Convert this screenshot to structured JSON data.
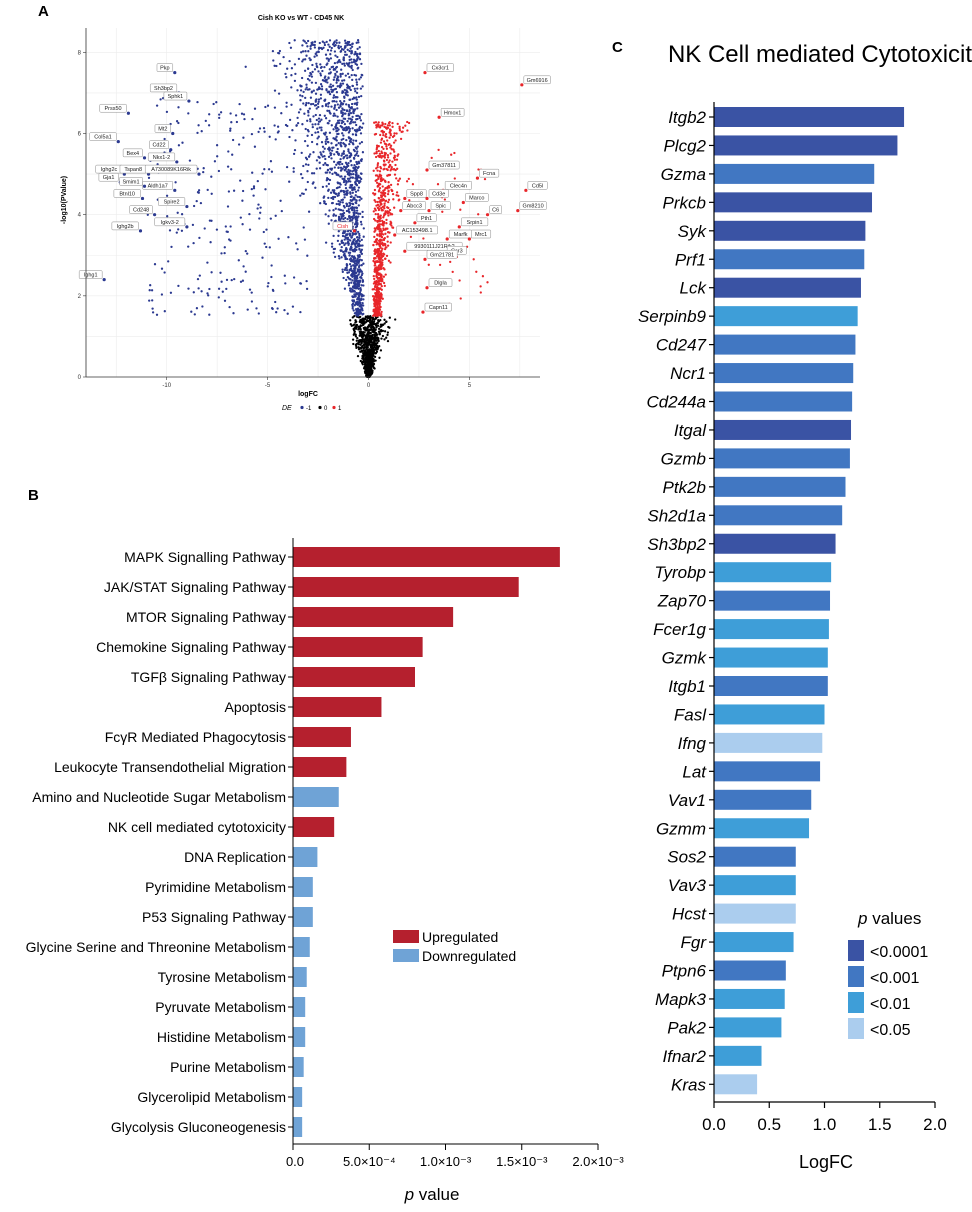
{
  "panels": {
    "a": "A",
    "b": "B",
    "c": "C"
  },
  "volcano": {
    "title": "Cish KO vs WT - CD45 NK",
    "xlabel": "logFC",
    "ylabel": "-log10(PValue)",
    "legend_title": "DE",
    "legend_items": [
      {
        "label": "-1",
        "color": "#2b3990"
      },
      {
        "label": "0",
        "color": "#000000"
      },
      {
        "label": "1",
        "color": "#e8262a"
      }
    ],
    "xticks": [
      -10,
      -5,
      0,
      5
    ],
    "yticks": [
      0,
      2,
      4,
      6,
      8
    ],
    "down_genes": [
      "Pkp",
      "Sh3bp2",
      "Sphk1",
      "Prss50",
      "Mt2",
      "Col5a1",
      "Cd22",
      "Bex4",
      "Nkx1-2",
      "Ighg2c",
      "Tspan8",
      "A730089K16Rik",
      "Gja1",
      "Aldh1a7",
      "Smim1",
      "Btnl10",
      "Spire2",
      "Cd248",
      "Igkv3-2",
      "Ighg2b",
      "Ighg1"
    ],
    "up_genes": [
      "Cx3cr1",
      "Gm6916",
      "Hmox1",
      "Gm37811",
      "Fcna",
      "Clec4n",
      "Cd5l",
      "Spp8",
      "Cd3e",
      "Marco",
      "Abcc3",
      "Spic",
      "Gm8210",
      "Pth1",
      "Srpin1",
      "C6",
      "AC153498.1",
      "Marfk",
      "Mrc1",
      "9930111J21Rik2",
      "Ccr3",
      "Gm21781",
      "Dlgla",
      "Capn11"
    ],
    "highlight_gene": "Cish"
  },
  "pathways": {
    "xlabel_p": "p",
    "xlabel_rest": " value",
    "xtick_labels": [
      "0.0",
      "5.0×10⁻⁴",
      "1.0×10⁻³",
      "1.5×10⁻³",
      "2.0×10⁻³"
    ],
    "legend": [
      {
        "label": "Upregulated",
        "color": "#b5202e"
      },
      {
        "label": "Downregulated",
        "color": "#6fa3d6"
      }
    ]
  },
  "cytotoxicity": {
    "title": "NK Cell mediated Cytotoxicity",
    "xlabel": "LogFC",
    "xtick_labels": [
      "0.0",
      "0.5",
      "1.0",
      "1.5",
      "2.0"
    ],
    "legend_title_p": "p",
    "legend_title_rest": " values",
    "legend": [
      {
        "label": "<0.0001",
        "color": "#3a53a4"
      },
      {
        "label": "<0.001",
        "color": "#4177c2"
      },
      {
        "label": "<0.01",
        "color": "#3e9ed8"
      },
      {
        "label": "<0.05",
        "color": "#abcdee"
      }
    ]
  },
  "chart_data": [
    {
      "type": "scatter",
      "title": "Cish KO vs WT - CD45 NK",
      "xlabel": "logFC",
      "ylabel": "-log10(PValue)",
      "xlim": [
        -14,
        8.5
      ],
      "ylim": [
        0,
        8.6
      ],
      "series": [
        {
          "name": "-1",
          "color": "#2b3990"
        },
        {
          "name": "0",
          "color": "#000000"
        },
        {
          "name": "1",
          "color": "#e8262a"
        }
      ],
      "labeled_points": [
        {
          "label": "Pkp",
          "x": -9.6,
          "y": 7.5,
          "group": -1
        },
        {
          "label": "Sh3bp2",
          "x": -9.4,
          "y": 7.0,
          "group": -1
        },
        {
          "label": "Sphk1",
          "x": -8.9,
          "y": 6.8,
          "group": -1
        },
        {
          "label": "Prss50",
          "x": -11.9,
          "y": 6.5,
          "group": -1
        },
        {
          "label": "Mt2",
          "x": -9.7,
          "y": 6.0,
          "group": -1
        },
        {
          "label": "Col5a1",
          "x": -12.4,
          "y": 5.8,
          "group": -1
        },
        {
          "label": "Cd22",
          "x": -9.8,
          "y": 5.6,
          "group": -1
        },
        {
          "label": "Bex4",
          "x": -11.1,
          "y": 5.4,
          "group": -1
        },
        {
          "label": "Nkx1-2",
          "x": -9.5,
          "y": 5.3,
          "group": -1
        },
        {
          "label": "Ighg2c",
          "x": -12.1,
          "y": 5.0,
          "group": -1
        },
        {
          "label": "Tspan8",
          "x": -10.9,
          "y": 5.0,
          "group": -1
        },
        {
          "label": "A730089K16Rik",
          "x": -8.4,
          "y": 5.0,
          "group": -1
        },
        {
          "label": "Gja1",
          "x": -12.3,
          "y": 4.8,
          "group": -1
        },
        {
          "label": "Aldh1a7",
          "x": -9.6,
          "y": 4.6,
          "group": -1
        },
        {
          "label": "Smim1",
          "x": -11.1,
          "y": 4.7,
          "group": -1
        },
        {
          "label": "Btnl10",
          "x": -11.2,
          "y": 4.4,
          "group": -1
        },
        {
          "label": "Spire2",
          "x": -9.0,
          "y": 4.2,
          "group": -1
        },
        {
          "label": "Cd248",
          "x": -10.6,
          "y": 4.0,
          "group": -1
        },
        {
          "label": "Igkv3-2",
          "x": -9.0,
          "y": 3.7,
          "group": -1
        },
        {
          "label": "Ighg2b",
          "x": -11.3,
          "y": 3.6,
          "group": -1
        },
        {
          "label": "Ighg1",
          "x": -13.1,
          "y": 2.4,
          "group": -1
        },
        {
          "label": "Cx3cr1",
          "x": 2.8,
          "y": 7.5,
          "group": 1
        },
        {
          "label": "Gm6916",
          "x": 7.6,
          "y": 7.2,
          "group": 1
        },
        {
          "label": "Hmox1",
          "x": 3.5,
          "y": 6.4,
          "group": 1
        },
        {
          "label": "Gm37811",
          "x": 2.9,
          "y": 5.1,
          "group": 1
        },
        {
          "label": "Fcna",
          "x": 5.4,
          "y": 4.9,
          "group": 1
        },
        {
          "label": "Clec4n",
          "x": 3.7,
          "y": 4.6,
          "group": 1
        },
        {
          "label": "Cd5l",
          "x": 7.8,
          "y": 4.6,
          "group": 1
        },
        {
          "label": "Spp8",
          "x": 1.8,
          "y": 4.4,
          "group": 1
        },
        {
          "label": "Cd3e",
          "x": 2.9,
          "y": 4.4,
          "group": 1
        },
        {
          "label": "Marco",
          "x": 4.7,
          "y": 4.3,
          "group": 1
        },
        {
          "label": "Abcc3",
          "x": 1.6,
          "y": 4.1,
          "group": 1
        },
        {
          "label": "Spic",
          "x": 3.0,
          "y": 4.1,
          "group": 1
        },
        {
          "label": "Gm8210",
          "x": 7.4,
          "y": 4.1,
          "group": 1
        },
        {
          "label": "Pth1",
          "x": 2.3,
          "y": 3.8,
          "group": 1
        },
        {
          "label": "Srpin1",
          "x": 4.5,
          "y": 3.7,
          "group": 1
        },
        {
          "label": "C6",
          "x": 5.9,
          "y": 4.0,
          "group": 1
        },
        {
          "label": "AC153498.1",
          "x": 1.3,
          "y": 3.5,
          "group": 1
        },
        {
          "label": "Marfk",
          "x": 3.9,
          "y": 3.4,
          "group": 1
        },
        {
          "label": "Mrc1",
          "x": 5.0,
          "y": 3.4,
          "group": 1
        },
        {
          "label": "9930111J21Rik2",
          "x": 1.8,
          "y": 3.1,
          "group": 1
        },
        {
          "label": "Ccr3",
          "x": 3.8,
          "y": 3.0,
          "group": 1
        },
        {
          "label": "Gm21781",
          "x": 2.8,
          "y": 2.9,
          "group": 1
        },
        {
          "label": "Dlgla",
          "x": 2.9,
          "y": 2.2,
          "group": 1
        },
        {
          "label": "Capn11",
          "x": 2.7,
          "y": 1.6,
          "group": 1
        },
        {
          "label": "Cish",
          "x": -0.7,
          "y": 3.6,
          "group": -1
        }
      ]
    },
    {
      "type": "bar",
      "orientation": "horizontal",
      "title": "",
      "xlabel": "p value",
      "xlim": [
        0,
        0.002
      ],
      "categories": [
        "MAPK Signalling Pathway",
        "JAK/STAT Signaling Pathway",
        "MTOR Signaling Pathway",
        "Chemokine Signaling Pathway",
        "TGFβ Signaling Pathway",
        "Apoptosis",
        "FcγR Mediated Phagocytosis",
        "Leukocyte Transendothelial Migration",
        "Amino and Nucleotide Sugar Metabolism",
        "NK cell mediated cytotoxicity",
        "DNA Replication",
        "Pyrimidine Metabolism",
        "P53 Signaling Pathway",
        "Glycine Serine and Threonine Metabolism",
        "Tyrosine Metabolism",
        "Pyruvate Metabolism",
        "Histidine Metabolism",
        "Purine Metabolism",
        "Glycerolipid Metabolism",
        "Glycolysis Gluconeogenesis"
      ],
      "values": [
        0.00175,
        0.00148,
        0.00105,
        0.00085,
        0.0008,
        0.00058,
        0.00038,
        0.00035,
        0.0003,
        0.00027,
        0.00016,
        0.00013,
        0.00013,
        0.00011,
        9e-05,
        8e-05,
        8e-05,
        7e-05,
        6e-05,
        6e-05
      ],
      "direction": [
        "Upregulated",
        "Upregulated",
        "Upregulated",
        "Upregulated",
        "Upregulated",
        "Upregulated",
        "Upregulated",
        "Upregulated",
        "Downregulated",
        "Upregulated",
        "Downregulated",
        "Downregulated",
        "Downregulated",
        "Downregulated",
        "Downregulated",
        "Downregulated",
        "Downregulated",
        "Downregulated",
        "Downregulated",
        "Downregulated"
      ]
    },
    {
      "type": "bar",
      "orientation": "horizontal",
      "title": "NK Cell mediated Cytotoxicity",
      "xlabel": "LogFC",
      "xlim": [
        0,
        2.0
      ],
      "categories": [
        "Itgb2",
        "Plcg2",
        "Gzma",
        "Prkcb",
        "Syk",
        "Prf1",
        "Lck",
        "Serpinb9",
        "Cd247",
        "Ncr1",
        "Cd244a",
        "Itgal",
        "Gzmb",
        "Ptk2b",
        "Sh2d1a",
        "Sh3bp2",
        "Tyrobp",
        "Zap70",
        "Fcer1g",
        "Gzmk",
        "Itgb1",
        "Fasl",
        "Ifng",
        "Lat",
        "Vav1",
        "Gzmm",
        "Sos2",
        "Vav3",
        "Hcst",
        "Fgr",
        "Ptpn6",
        "Mapk3",
        "Pak2",
        "Ifnar2",
        "Kras"
      ],
      "values": [
        1.72,
        1.66,
        1.45,
        1.43,
        1.37,
        1.36,
        1.33,
        1.3,
        1.28,
        1.26,
        1.25,
        1.24,
        1.23,
        1.19,
        1.16,
        1.1,
        1.06,
        1.05,
        1.04,
        1.03,
        1.03,
        1.0,
        0.98,
        0.96,
        0.88,
        0.86,
        0.74,
        0.74,
        0.74,
        0.72,
        0.65,
        0.64,
        0.61,
        0.43,
        0.39
      ],
      "pvalue_class": [
        "<0.0001",
        "<0.0001",
        "<0.001",
        "<0.0001",
        "<0.0001",
        "<0.001",
        "<0.0001",
        "<0.01",
        "<0.001",
        "<0.001",
        "<0.001",
        "<0.0001",
        "<0.001",
        "<0.001",
        "<0.001",
        "<0.0001",
        "<0.01",
        "<0.001",
        "<0.01",
        "<0.01",
        "<0.001",
        "<0.01",
        "<0.05",
        "<0.001",
        "<0.001",
        "<0.01",
        "<0.001",
        "<0.01",
        "<0.05",
        "<0.01",
        "<0.001",
        "<0.01",
        "<0.01",
        "<0.01",
        "<0.05"
      ]
    }
  ]
}
